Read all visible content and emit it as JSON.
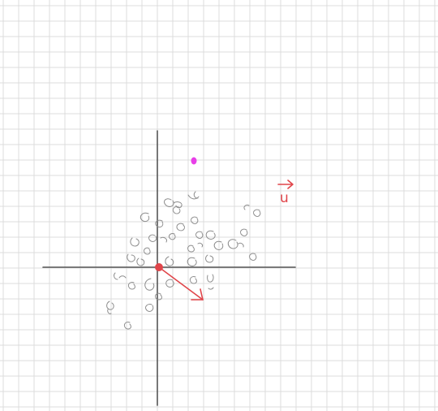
{
  "diagram": {
    "vector_label": "u",
    "colors": {
      "background": "#ffffff",
      "grid": "#dcdcdc",
      "axes": "#555555",
      "scribbles": "#8c8c8c",
      "vector": "#e0454a",
      "origin_point": "#e0454a",
      "highlight_point": "#e83fe8"
    }
  }
}
